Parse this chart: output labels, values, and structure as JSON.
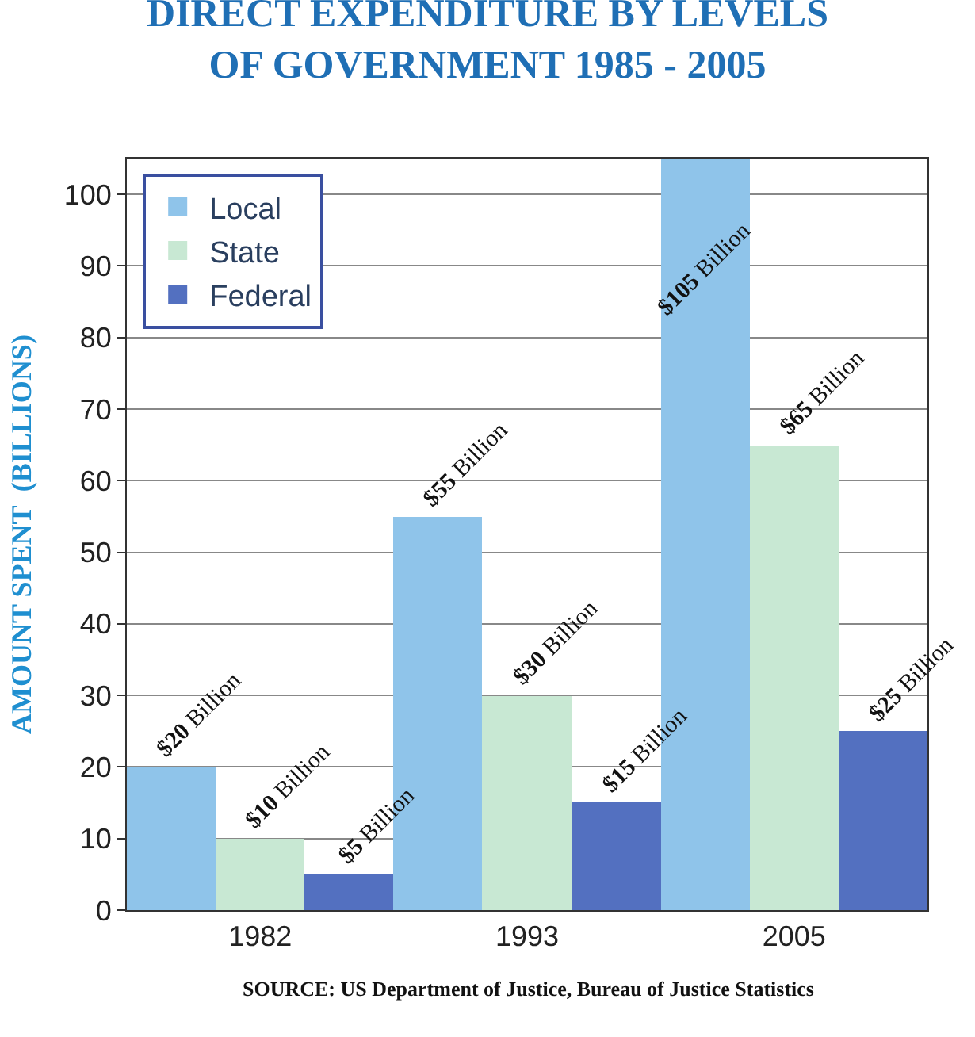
{
  "chart_data": {
    "type": "bar",
    "title": "DIRECT EXPENDITURE BY LEVELS\nOF GOVERNMENT 1985 - 2005",
    "ylabel": "AMOUNT SPENT  (BILLIONS)",
    "categories": [
      "1982",
      "1993",
      "2005"
    ],
    "series": [
      {
        "name": "Local",
        "color": "#8fc4ea",
        "values": [
          20,
          55,
          105
        ],
        "value_labels": [
          "$20 Billion",
          "$55 Billion",
          "$105 Billion"
        ]
      },
      {
        "name": "State",
        "color": "#c8e8d3",
        "values": [
          10,
          30,
          65
        ],
        "value_labels": [
          "$10 Billion",
          "$30 Billion",
          "$65 Billion"
        ]
      },
      {
        "name": "Federal",
        "color": "#5370c0",
        "values": [
          5,
          15,
          25
        ],
        "value_labels": [
          "$5 Billion",
          "$15 Billion",
          "$25 Billion"
        ]
      }
    ],
    "ylim": [
      0,
      105
    ],
    "yticks": [
      0,
      10,
      20,
      30,
      40,
      50,
      60,
      70,
      80,
      90,
      100
    ],
    "grid": "y",
    "legend": "top left",
    "annotations": [
      "SOURCE: US Department of Justice, Bureau of Justice Statistics"
    ]
  }
}
